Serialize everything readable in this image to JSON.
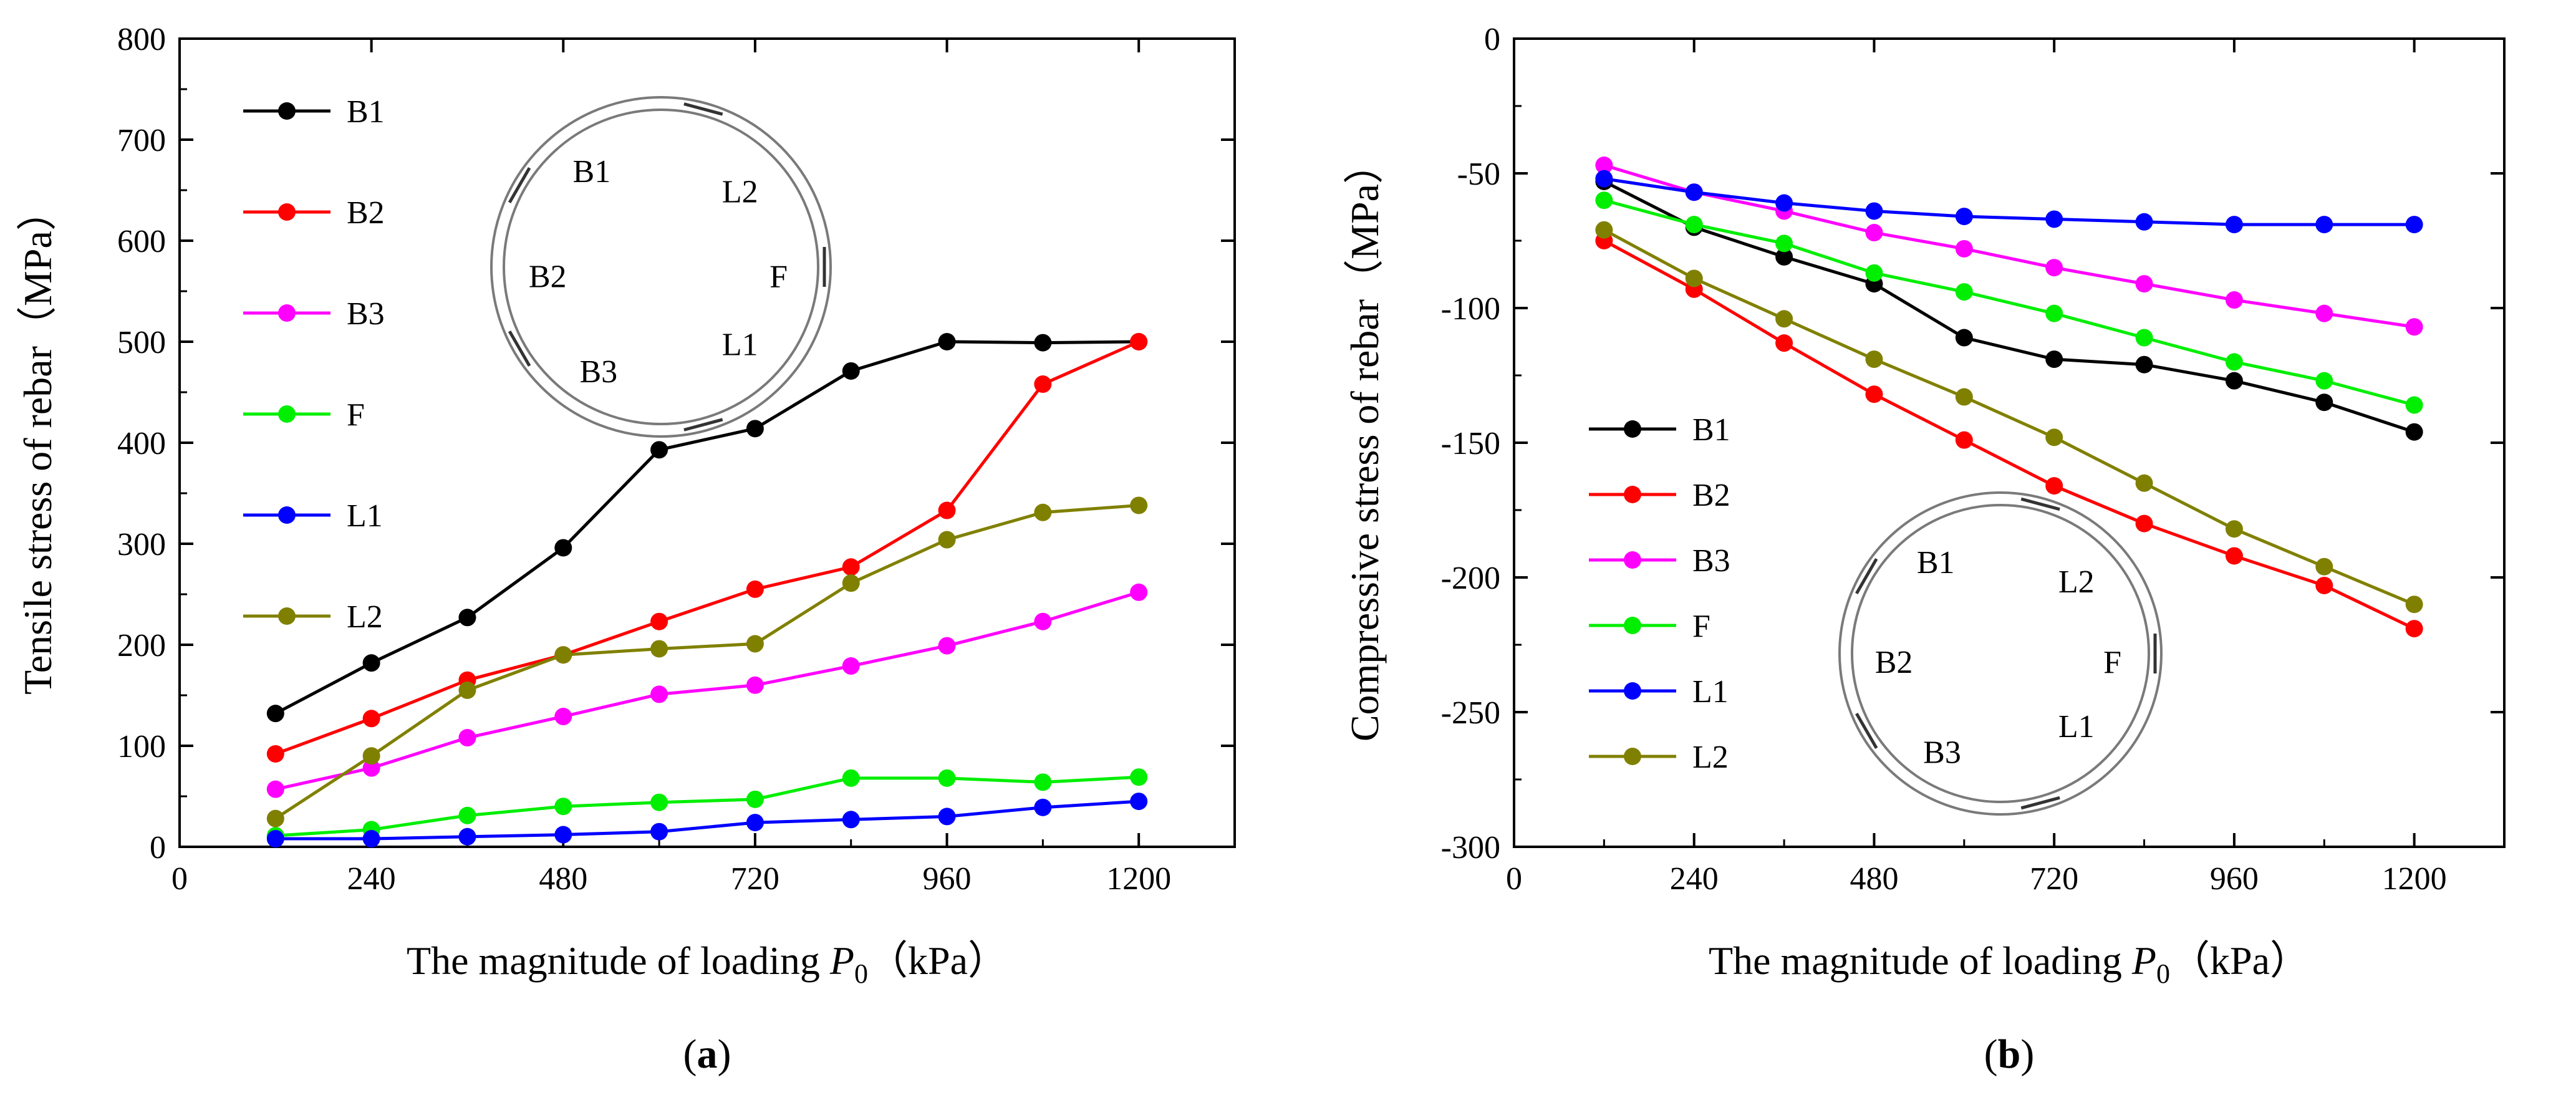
{
  "chart_data": [
    {
      "type": "line",
      "title": "",
      "panel_label": {
        "open": "(",
        "letter": "a",
        "close": ")"
      },
      "xlabel": {
        "main": "The magnitude of loading ",
        "var": "P",
        "sub": "0",
        "unit": "（kPa）"
      },
      "ylabel": "Tensile stress of rebar（MPa）",
      "xlim": [
        0,
        1320
      ],
      "ylim": [
        0,
        800
      ],
      "x_ticks": [
        0,
        240,
        480,
        720,
        960,
        1200
      ],
      "y_ticks": [
        0,
        100,
        200,
        300,
        400,
        500,
        600,
        700,
        800
      ],
      "x_tick_labels": [
        "0",
        "240",
        "480",
        "720",
        "960",
        "1200"
      ],
      "y_tick_labels": [
        "0",
        "100",
        "200",
        "300",
        "400",
        "500",
        "600",
        "700",
        "800"
      ],
      "grid": false,
      "legend_position": "top-left",
      "x": [
        120,
        240,
        360,
        480,
        600,
        720,
        840,
        960,
        1080,
        1200
      ],
      "series": [
        {
          "name": "B1",
          "color": "#000000",
          "values": [
            132,
            182,
            227,
            296,
            393,
            414,
            471,
            500,
            499,
            500
          ]
        },
        {
          "name": "B2",
          "color": "#ff0000",
          "values": [
            92,
            127,
            165,
            190,
            223,
            255,
            277,
            333,
            458,
            500
          ]
        },
        {
          "name": "B3",
          "color": "#ff00ff",
          "values": [
            57,
            78,
            108,
            129,
            151,
            160,
            179,
            199,
            223,
            252
          ]
        },
        {
          "name": "F",
          "color": "#00ee00",
          "values": [
            11,
            17,
            31,
            40,
            44,
            47,
            68,
            68,
            64,
            69
          ]
        },
        {
          "name": "L1",
          "color": "#0000ff",
          "values": [
            8,
            8,
            10,
            12,
            15,
            24,
            27,
            30,
            39,
            45
          ]
        },
        {
          "name": "L2",
          "color": "#808000",
          "values": [
            28,
            90,
            155,
            190,
            196,
            201,
            261,
            304,
            331,
            338
          ]
        }
      ]
    },
    {
      "type": "line",
      "title": "",
      "panel_label": {
        "open": "(",
        "letter": "b",
        "close": ")"
      },
      "xlabel": {
        "main": "The magnitude of loading ",
        "var": "P",
        "sub": "0",
        "unit": "（kPa）"
      },
      "ylabel": "Compressive stress of rebar（MPa）",
      "xlim": [
        0,
        1320
      ],
      "ylim": [
        -300,
        0
      ],
      "x_ticks": [
        0,
        240,
        480,
        720,
        960,
        1200
      ],
      "y_ticks": [
        -300,
        -250,
        -200,
        -150,
        -100,
        -50,
        0
      ],
      "x_tick_labels": [
        "0",
        "240",
        "480",
        "720",
        "960",
        "1200"
      ],
      "y_tick_labels": [
        "-300",
        "-250",
        "-200",
        "-150",
        "-100",
        "-50",
        "0"
      ],
      "grid": false,
      "legend_position": "bottom-left",
      "x": [
        120,
        240,
        360,
        480,
        600,
        720,
        840,
        960,
        1080,
        1200
      ],
      "series": [
        {
          "name": "B1",
          "color": "#000000",
          "values": [
            -53,
            -70,
            -81,
            -91,
            -111,
            -119,
            -121,
            -127,
            -135,
            -146
          ]
        },
        {
          "name": "B2",
          "color": "#ff0000",
          "values": [
            -75,
            -93,
            -113,
            -132,
            -149,
            -166,
            -180,
            -192,
            -203,
            -219
          ]
        },
        {
          "name": "B3",
          "color": "#ff00ff",
          "values": [
            -47,
            -57,
            -64,
            -72,
            -78,
            -85,
            -91,
            -97,
            -102,
            -107
          ]
        },
        {
          "name": "F",
          "color": "#00ee00",
          "values": [
            -60,
            -69,
            -76,
            -87,
            -94,
            -102,
            -111,
            -120,
            -127,
            -136
          ]
        },
        {
          "name": "L1",
          "color": "#0000ff",
          "values": [
            -52,
            -57,
            -61,
            -64,
            -66,
            -67,
            -68,
            -69,
            -69,
            -69
          ]
        },
        {
          "name": "L2",
          "color": "#808000",
          "values": [
            -71,
            -89,
            -104,
            -119,
            -133,
            -148,
            -165,
            -182,
            -196,
            -210
          ]
        }
      ]
    }
  ],
  "ring_labels": {
    "B1": "B1",
    "L2": "L2",
    "B2": "B2",
    "F": "F",
    "B3": "B3",
    "L1": "L1"
  }
}
